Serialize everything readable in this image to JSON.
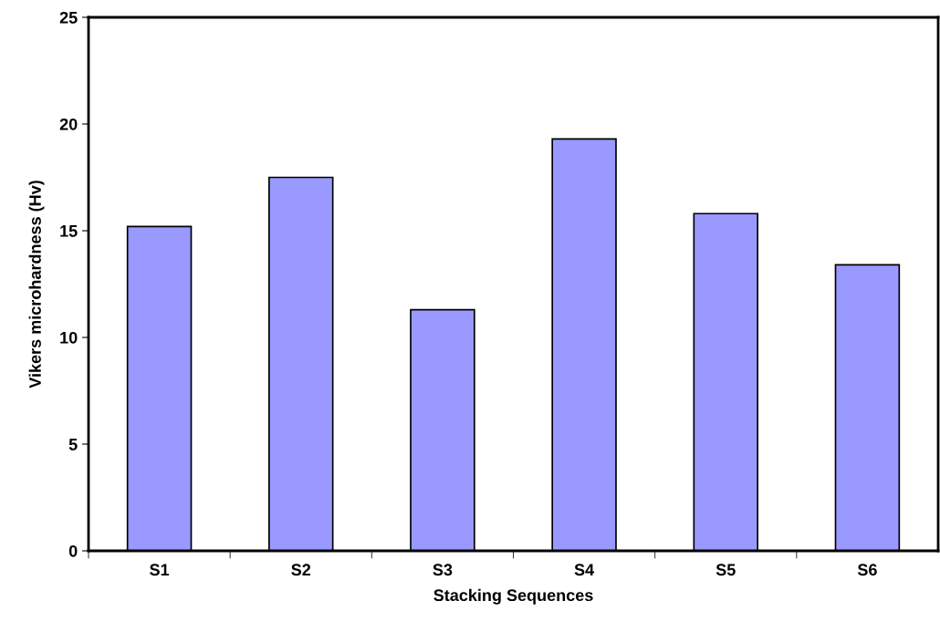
{
  "chart_data": {
    "type": "bar",
    "xlabel": "Stacking Sequences",
    "ylabel": "Vikers microhardness (Hv)",
    "categories": [
      "S1",
      "S2",
      "S3",
      "S4",
      "S5",
      "S6"
    ],
    "values": [
      15.2,
      17.5,
      11.3,
      19.3,
      15.8,
      13.4
    ],
    "color": "#9999ff",
    "ylim": [
      0,
      25
    ],
    "yticks": [
      0,
      5,
      10,
      15,
      20,
      25
    ],
    "grid": false,
    "legend": false
  }
}
